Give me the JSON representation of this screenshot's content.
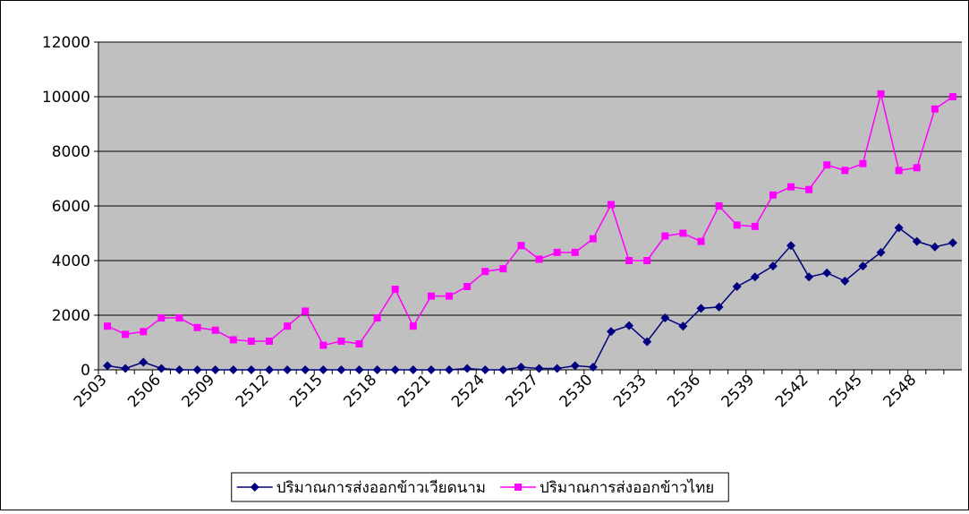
{
  "chart_data": {
    "type": "line",
    "categories": [
      "2503",
      null,
      null,
      "2506",
      null,
      null,
      "2509",
      null,
      null,
      "2512",
      null,
      null,
      "2515",
      null,
      null,
      "2518",
      null,
      null,
      "2521",
      null,
      null,
      "2524",
      null,
      null,
      "2527",
      null,
      null,
      "2530",
      null,
      null,
      "2533",
      null,
      null,
      "2536",
      null,
      null,
      "2539",
      null,
      null,
      "2542",
      null,
      null,
      "2545",
      null,
      null,
      "2548",
      null,
      null
    ],
    "series": [
      {
        "name": "ปริมาณการส่งออกข้าวเวียดนาม",
        "color": "#000080",
        "marker": "diamond",
        "values": [
          150,
          50,
          280,
          50,
          0,
          0,
          0,
          0,
          0,
          0,
          0,
          0,
          0,
          0,
          0,
          0,
          0,
          0,
          0,
          0,
          50,
          0,
          0,
          100,
          50,
          50,
          150,
          100,
          1400,
          1620,
          1030,
          1900,
          1600,
          2250,
          2300,
          3050,
          3400,
          3800,
          4550,
          3400,
          3550,
          3250,
          3800,
          4300,
          5200,
          4700,
          4500,
          4650
        ]
      },
      {
        "name": "ปริมาณการส่งออกข้าวไทย",
        "color": "#ff00ff",
        "marker": "square",
        "values": [
          1600,
          1300,
          1400,
          1900,
          1900,
          1550,
          1450,
          1100,
          1050,
          1050,
          1600,
          2150,
          900,
          1050,
          950,
          1900,
          2950,
          1600,
          2700,
          2700,
          3050,
          3600,
          3700,
          4550,
          4050,
          4300,
          4300,
          4800,
          6050,
          4000,
          4000,
          4900,
          5000,
          4700,
          6000,
          5300,
          5250,
          6400,
          6700,
          6600,
          7500,
          7300,
          7550,
          10100,
          7300,
          7400,
          9550,
          10000
        ]
      }
    ],
    "ylim": [
      0,
      12000
    ],
    "yticks": [
      0,
      2000,
      4000,
      6000,
      8000,
      10000,
      12000
    ],
    "grid": true,
    "legend": "bottom"
  }
}
